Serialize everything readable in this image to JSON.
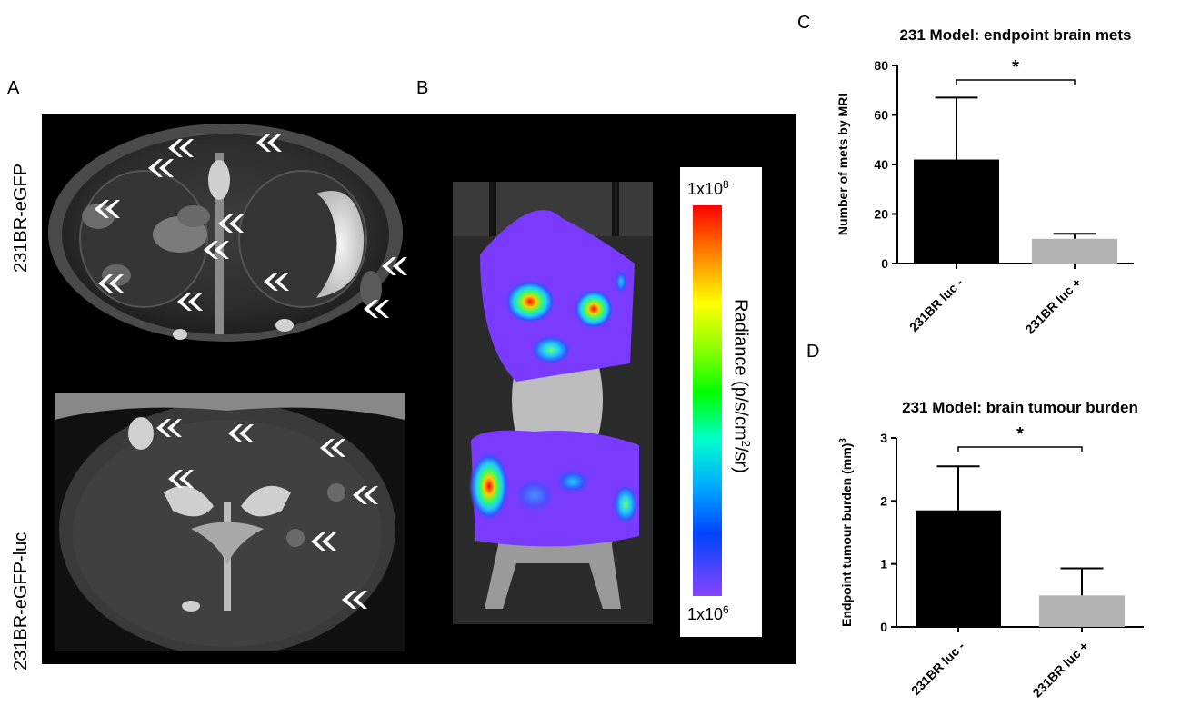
{
  "panels": {
    "A": {
      "letter": "A",
      "row_labels": [
        "231BR-eGFP",
        "231BR-eGFP-luc"
      ]
    },
    "B": {
      "letter": "B",
      "colorbar": {
        "max_label": "1x10",
        "max_exp": "8",
        "min_label": "1x10",
        "min_exp": "6",
        "title_pre": "Radiance (p/s/cm",
        "title_exp": "2",
        "title_post": "/sr)"
      }
    },
    "C": {
      "letter": "C"
    },
    "D": {
      "letter": "D"
    }
  },
  "chart_data": [
    {
      "type": "bar",
      "title": "231 Model: endpoint brain mets",
      "ylabel": "Number of mets by MRI",
      "categories": [
        "231BR luc -",
        "231BR luc +"
      ],
      "values": [
        42,
        10
      ],
      "errors": [
        25,
        2
      ],
      "colors": [
        "#000000",
        "#b3b3b3"
      ],
      "ylim": [
        0,
        80
      ],
      "yticks": [
        0,
        20,
        40,
        60,
        80
      ],
      "significance": "*"
    },
    {
      "type": "bar",
      "title": "231 Model: brain tumour burden",
      "ylabel": "Endpoint tumour burden (mm)",
      "ylabel_exp": "3",
      "categories": [
        "231BR luc -",
        "231BR luc +"
      ],
      "values": [
        1.85,
        0.5
      ],
      "errors": [
        0.7,
        0.43
      ],
      "colors": [
        "#000000",
        "#b3b3b3"
      ],
      "ylim": [
        0,
        3
      ],
      "yticks": [
        0,
        1,
        2,
        3
      ],
      "significance": "*"
    }
  ]
}
